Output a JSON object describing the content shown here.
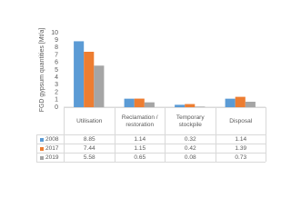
{
  "chart_data": {
    "type": "bar",
    "y_label": "FGD gypsum quantities [Mt/a]",
    "categories": [
      "Utilisation",
      "Reclamation / restoration",
      "Temporary stockpile",
      "Disposal"
    ],
    "series": [
      {
        "name": "2008",
        "color": "#5b9bd5",
        "values": [
          8.85,
          1.14,
          0.32,
          1.14
        ]
      },
      {
        "name": "2017",
        "color": "#ed7d31",
        "values": [
          7.44,
          1.15,
          0.42,
          1.39
        ]
      },
      {
        "name": "2019",
        "color": "#a5a5a5",
        "values": [
          5.58,
          0.65,
          0.08,
          0.73
        ]
      }
    ],
    "ylim": [
      0,
      10
    ],
    "yticks": [
      0,
      1,
      2,
      3,
      4,
      5,
      6,
      7,
      8,
      9,
      10
    ],
    "grid": false
  }
}
